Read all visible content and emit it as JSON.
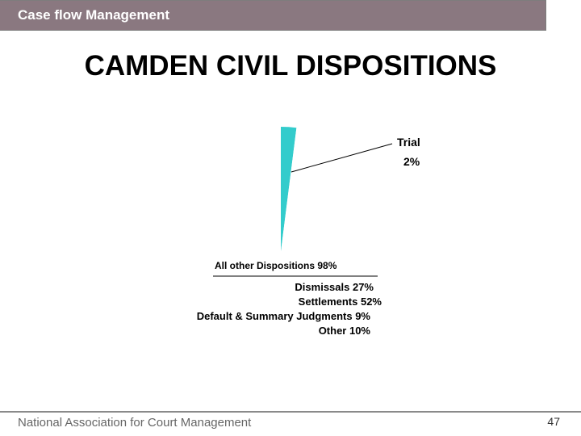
{
  "header": {
    "title": "Case flow Management"
  },
  "slide": {
    "title": "CAMDEN CIVIL DISPOSITIONS"
  },
  "chart_data": {
    "type": "pie",
    "title": "CAMDEN CIVIL DISPOSITIONS",
    "slices": [
      {
        "name": "Trial",
        "label": "2%",
        "value": 2,
        "color": "#33cccc"
      },
      {
        "name": "All other Dispositions 98%",
        "value": 98,
        "color": "#ffffff"
      }
    ],
    "breakdown": [
      "Dismissals 27%",
      "Settlements 52%",
      "Default & Summary Judgments 9%",
      "Other 10%"
    ]
  },
  "footer": {
    "org": "National Association for Court Management",
    "page": "47"
  }
}
